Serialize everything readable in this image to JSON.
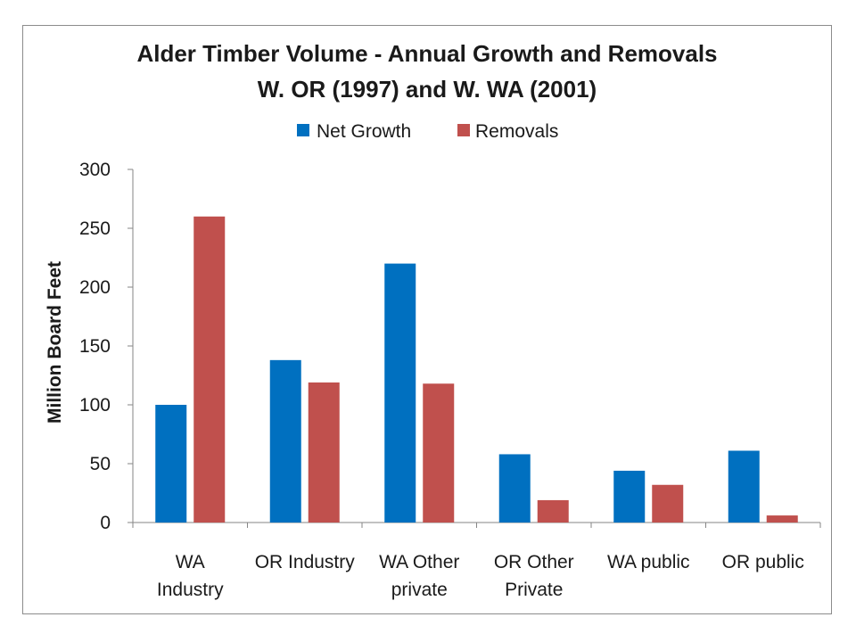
{
  "chart_data": {
    "type": "bar",
    "title": [
      "Alder Timber Volume - Annual Growth and Removals",
      "W. OR  (1997) and W. WA (2001)"
    ],
    "xlabel": "",
    "ylabel": "Million Board Feet",
    "ylim": [
      0,
      300
    ],
    "yticks": [
      0,
      50,
      100,
      150,
      200,
      250,
      300
    ],
    "grid": false,
    "legend_position": "top",
    "categories": [
      [
        "WA",
        "Industry"
      ],
      [
        "OR Industry"
      ],
      [
        "WA Other",
        "private"
      ],
      [
        "OR Other",
        "Private"
      ],
      [
        "WA public"
      ],
      [
        "OR public"
      ]
    ],
    "series": [
      {
        "name": "Net Growth",
        "color": "#0070C0",
        "values": [
          100,
          138,
          220,
          58,
          44,
          61
        ]
      },
      {
        "name": "Removals",
        "color": "#C0504D",
        "values": [
          260,
          119,
          118,
          19,
          32,
          6
        ]
      }
    ]
  }
}
